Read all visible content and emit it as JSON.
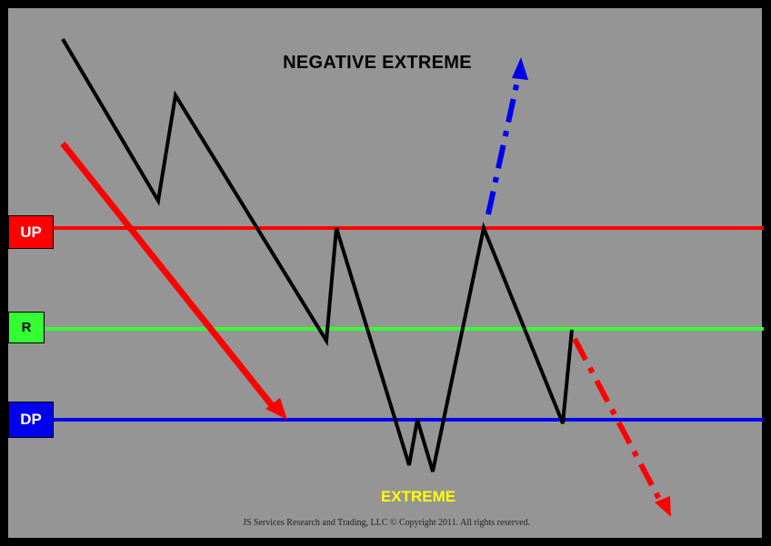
{
  "title": "NEGATIVE EXTREME",
  "extreme_label": "EXTREME",
  "copyright": "JS Services Research and Trading, LLC © Copyright 2011. All rights reserved.",
  "levels": {
    "up": {
      "label": "UP",
      "color": "#ff0000"
    },
    "r": {
      "label": "R",
      "color": "#33ff33"
    },
    "dp": {
      "label": "DP",
      "color": "#0000ee"
    }
  },
  "colors": {
    "background": "#959595",
    "frame": "#000000",
    "price_path": "#000000",
    "down_arrow": "#ff0000",
    "up_dashed_arrow": "#0000ee",
    "down_dashed_arrow": "#ff0000",
    "extreme_text": "#ffff00"
  }
}
